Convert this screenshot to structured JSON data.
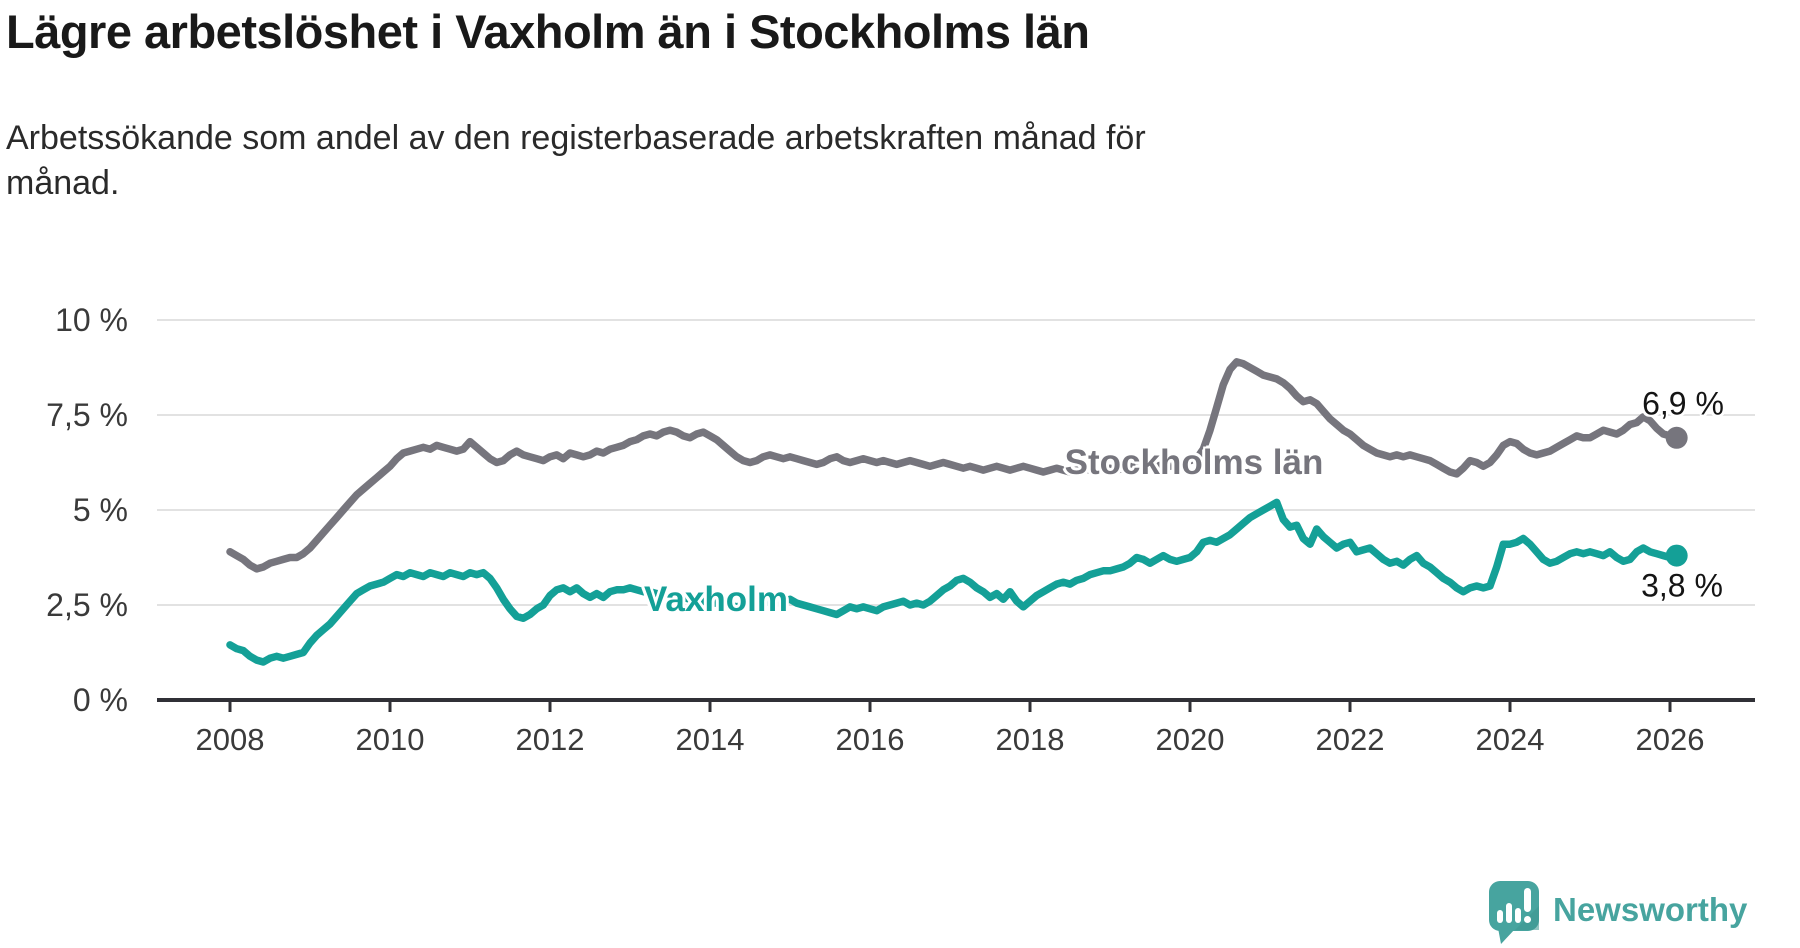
{
  "title": "Lägre arbetslöshet i Vaxholm än i Stockholms län",
  "subtitle": {
    "line1": "Arbetssökande som andel av den registerbaserade arbetskraften månad för",
    "line2": "månad."
  },
  "y_axis": {
    "tick_labels": [
      "10 %",
      "7,5 %",
      "5 %",
      "2,5 %",
      "0 %"
    ],
    "tick_values": [
      10,
      7.5,
      5,
      2.5,
      0
    ]
  },
  "x_axis": {
    "tick_labels": [
      "2008",
      "2010",
      "2012",
      "2014",
      "2016",
      "2018",
      "2020",
      "2022",
      "2024",
      "2026"
    ],
    "tick_years": [
      2008,
      2010,
      2012,
      2014,
      2016,
      2018,
      2020,
      2022,
      2024,
      2026
    ]
  },
  "series_labels": {
    "stockholm": "Stockholms län",
    "vaxholm": "Vaxholm"
  },
  "end_labels": {
    "stockholm": "6,9 %",
    "vaxholm": "3,8 %"
  },
  "branding": {
    "logo_text": "Newsworthy",
    "logo_icon": "bar-chart-speech-bubble-icon"
  },
  "colors": {
    "stockholm": "#76757D",
    "vaxholm": "#14A097",
    "grid": "#E2E2E2",
    "axis": "#303036",
    "text": "#1A1A1A",
    "logo_teal": "#47A49F"
  },
  "chart_data": {
    "type": "line",
    "unit": "%",
    "x_start": "2008-01",
    "x_end": "2026-02",
    "x_interval": "monthly",
    "ylim": [
      0,
      10
    ],
    "grid": true,
    "legend_position": "inline-labels",
    "series": [
      {
        "name": "Stockholms län",
        "color": "#76757D",
        "end_value": 6.9,
        "end_value_label": "6,9 %",
        "values": [
          3.9,
          3.8,
          3.7,
          3.55,
          3.45,
          3.5,
          3.6,
          3.65,
          3.7,
          3.75,
          3.75,
          3.85,
          4.0,
          4.2,
          4.4,
          4.6,
          4.8,
          5.0,
          5.2,
          5.4,
          5.55,
          5.7,
          5.85,
          6.0,
          6.15,
          6.35,
          6.5,
          6.55,
          6.6,
          6.65,
          6.6,
          6.7,
          6.65,
          6.6,
          6.55,
          6.6,
          6.8,
          6.65,
          6.5,
          6.35,
          6.25,
          6.3,
          6.45,
          6.55,
          6.45,
          6.4,
          6.35,
          6.3,
          6.4,
          6.45,
          6.35,
          6.5,
          6.45,
          6.4,
          6.45,
          6.55,
          6.5,
          6.6,
          6.65,
          6.7,
          6.8,
          6.85,
          6.95,
          7.0,
          6.95,
          7.05,
          7.1,
          7.05,
          6.95,
          6.9,
          7.0,
          7.05,
          6.95,
          6.85,
          6.7,
          6.55,
          6.4,
          6.3,
          6.25,
          6.3,
          6.4,
          6.45,
          6.4,
          6.35,
          6.4,
          6.35,
          6.3,
          6.25,
          6.2,
          6.25,
          6.35,
          6.4,
          6.3,
          6.25,
          6.3,
          6.35,
          6.3,
          6.25,
          6.3,
          6.25,
          6.2,
          6.25,
          6.3,
          6.25,
          6.2,
          6.15,
          6.2,
          6.25,
          6.2,
          6.15,
          6.1,
          6.15,
          6.1,
          6.05,
          6.1,
          6.15,
          6.1,
          6.05,
          6.1,
          6.15,
          6.1,
          6.05,
          6.0,
          6.05,
          6.1,
          6.05,
          6.0,
          6.05,
          6.1,
          6.05,
          6.0,
          6.05,
          6.1,
          6.05,
          6.1,
          6.15,
          6.1,
          6.05,
          6.1,
          6.15,
          6.2,
          6.15,
          6.2,
          6.25,
          6.3,
          6.35,
          6.6,
          7.1,
          7.7,
          8.3,
          8.7,
          8.9,
          8.85,
          8.75,
          8.65,
          8.55,
          8.5,
          8.45,
          8.35,
          8.2,
          8.0,
          7.85,
          7.9,
          7.8,
          7.6,
          7.4,
          7.25,
          7.1,
          7.0,
          6.85,
          6.7,
          6.6,
          6.5,
          6.45,
          6.4,
          6.45,
          6.4,
          6.45,
          6.4,
          6.35,
          6.3,
          6.2,
          6.1,
          6.0,
          5.95,
          6.1,
          6.3,
          6.25,
          6.15,
          6.25,
          6.45,
          6.7,
          6.8,
          6.75,
          6.6,
          6.5,
          6.45,
          6.5,
          6.55,
          6.65,
          6.75,
          6.85,
          6.95,
          6.9,
          6.9,
          7.0,
          7.1,
          7.05,
          7.0,
          7.1,
          7.25,
          7.3,
          7.45,
          7.35,
          7.15,
          7.0,
          6.95,
          6.9
        ]
      },
      {
        "name": "Vaxholm",
        "color": "#14A097",
        "end_value": 3.8,
        "end_value_label": "3,8 %",
        "values": [
          1.45,
          1.35,
          1.3,
          1.15,
          1.05,
          1.0,
          1.1,
          1.15,
          1.1,
          1.15,
          1.2,
          1.25,
          1.5,
          1.7,
          1.85,
          2.0,
          2.2,
          2.4,
          2.6,
          2.8,
          2.9,
          3.0,
          3.05,
          3.1,
          3.2,
          3.3,
          3.25,
          3.35,
          3.3,
          3.25,
          3.35,
          3.3,
          3.25,
          3.35,
          3.3,
          3.25,
          3.35,
          3.3,
          3.35,
          3.2,
          2.95,
          2.65,
          2.4,
          2.2,
          2.15,
          2.25,
          2.4,
          2.5,
          2.75,
          2.9,
          2.95,
          2.85,
          2.95,
          2.8,
          2.7,
          2.8,
          2.7,
          2.85,
          2.9,
          2.9,
          2.95,
          2.9,
          2.85,
          2.85,
          2.8,
          2.8,
          2.75,
          2.7,
          2.7,
          2.65,
          2.6,
          2.6,
          2.55,
          2.55,
          2.5,
          2.5,
          2.45,
          2.5,
          2.55,
          2.5,
          2.55,
          2.6,
          2.55,
          2.6,
          2.65,
          2.55,
          2.5,
          2.45,
          2.4,
          2.35,
          2.3,
          2.25,
          2.35,
          2.45,
          2.4,
          2.45,
          2.4,
          2.35,
          2.45,
          2.5,
          2.55,
          2.6,
          2.5,
          2.55,
          2.5,
          2.6,
          2.75,
          2.9,
          3.0,
          3.15,
          3.2,
          3.1,
          2.95,
          2.85,
          2.7,
          2.8,
          2.65,
          2.85,
          2.6,
          2.45,
          2.6,
          2.75,
          2.85,
          2.95,
          3.05,
          3.1,
          3.05,
          3.15,
          3.2,
          3.3,
          3.35,
          3.4,
          3.4,
          3.45,
          3.5,
          3.6,
          3.75,
          3.7,
          3.6,
          3.7,
          3.8,
          3.7,
          3.65,
          3.7,
          3.75,
          3.9,
          4.15,
          4.2,
          4.15,
          4.25,
          4.35,
          4.5,
          4.65,
          4.8,
          4.9,
          5.0,
          5.1,
          5.2,
          4.75,
          4.55,
          4.6,
          4.25,
          4.1,
          4.5,
          4.3,
          4.15,
          4.0,
          4.1,
          4.15,
          3.9,
          3.95,
          4.0,
          3.85,
          3.7,
          3.6,
          3.65,
          3.55,
          3.7,
          3.8,
          3.6,
          3.5,
          3.35,
          3.2,
          3.1,
          2.95,
          2.85,
          2.95,
          3.0,
          2.95,
          3.0,
          3.5,
          4.1,
          4.1,
          4.15,
          4.25,
          4.1,
          3.9,
          3.7,
          3.6,
          3.65,
          3.75,
          3.85,
          3.9,
          3.85,
          3.9,
          3.85,
          3.8,
          3.9,
          3.75,
          3.65,
          3.7,
          3.9,
          4.0,
          3.9,
          3.85,
          3.8,
          3.75,
          3.8
        ]
      }
    ]
  }
}
